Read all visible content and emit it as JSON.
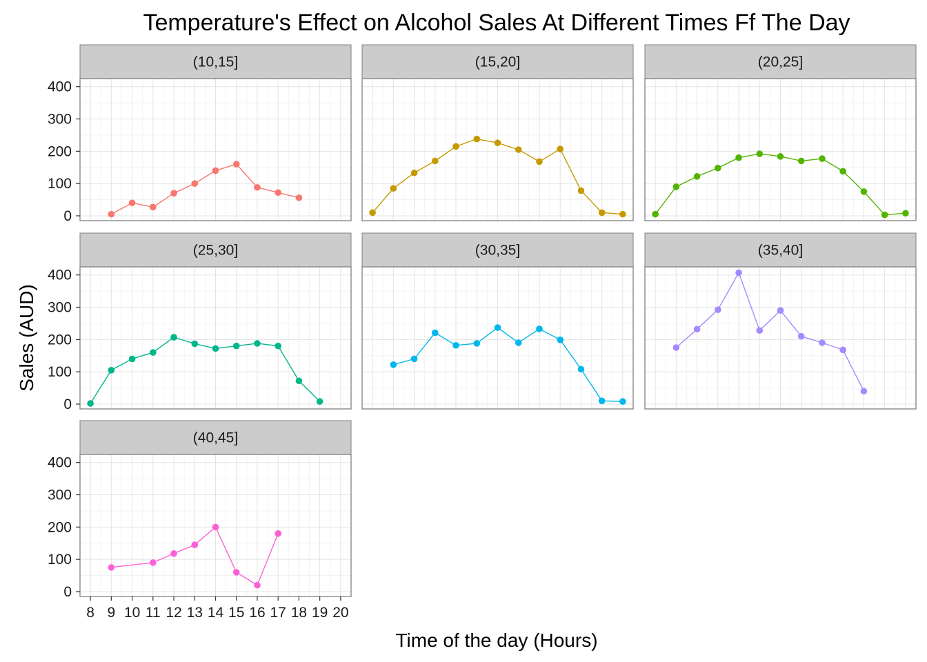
{
  "chart_data": {
    "type": "line",
    "title": "Temperature's Effect on Alcohol Sales At Different Times Ff The Day",
    "xlabel": "Time of the day (Hours)",
    "ylabel": "Sales (AUD)",
    "xlim": [
      7.5,
      20.5
    ],
    "ylim": [
      -15,
      425
    ],
    "x_ticks": [
      8,
      9,
      10,
      11,
      12,
      13,
      14,
      15,
      16,
      17,
      18,
      19,
      20
    ],
    "y_ticks": [
      0,
      100,
      200,
      300,
      400
    ],
    "grid": true,
    "legend": "none",
    "facets": [
      {
        "label": "(10,15]",
        "color": "#F8766D",
        "x": [
          9,
          10,
          11,
          12,
          13,
          14,
          15,
          16,
          17,
          18
        ],
        "y": [
          5,
          40,
          27,
          70,
          100,
          140,
          160,
          88,
          72,
          56
        ]
      },
      {
        "label": "(15,20]",
        "color": "#C49A00",
        "x": [
          8,
          9,
          10,
          11,
          12,
          13,
          14,
          15,
          16,
          17,
          18,
          19,
          20
        ],
        "y": [
          10,
          85,
          133,
          170,
          215,
          238,
          226,
          205,
          168,
          207,
          78,
          10,
          5
        ]
      },
      {
        "label": "(20,25]",
        "color": "#53B400",
        "x": [
          8,
          9,
          10,
          11,
          12,
          13,
          14,
          15,
          16,
          17,
          18,
          19,
          20
        ],
        "y": [
          5,
          90,
          122,
          148,
          180,
          192,
          184,
          170,
          177,
          138,
          75,
          3,
          8
        ]
      },
      {
        "label": "(25,30]",
        "color": "#00B68A",
        "x": [
          8,
          9,
          10,
          11,
          12,
          13,
          14,
          15,
          16,
          17,
          18,
          19
        ],
        "y": [
          2,
          105,
          140,
          160,
          207,
          187,
          172,
          180,
          188,
          180,
          72,
          8
        ]
      },
      {
        "label": "(30,35]",
        "color": "#00B6EB",
        "x": [
          9,
          10,
          11,
          12,
          13,
          14,
          15,
          16,
          17,
          18,
          19,
          20
        ],
        "y": [
          122,
          140,
          221,
          182,
          188,
          237,
          190,
          233,
          199,
          108,
          10,
          8
        ]
      },
      {
        "label": "(35,40]",
        "color": "#A58AFF",
        "x": [
          9,
          10,
          11,
          12,
          13,
          14,
          15,
          16,
          17,
          18
        ],
        "y": [
          175,
          232,
          292,
          407,
          228,
          290,
          210,
          190,
          168,
          40
        ]
      },
      {
        "label": "(40,45]",
        "color": "#FB61D7",
        "x": [
          9,
          11,
          12,
          13,
          14,
          15,
          16,
          17
        ],
        "y": [
          75,
          90,
          118,
          145,
          200,
          60,
          20,
          180
        ]
      }
    ]
  }
}
